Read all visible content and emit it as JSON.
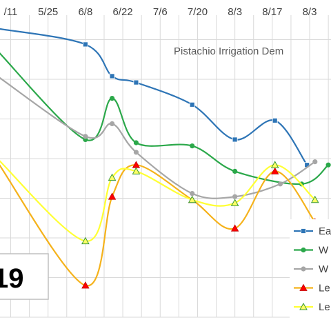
{
  "chart_data": {
    "type": "line",
    "title": "Pistachio Irrigation Dem",
    "x_tick_labels": [
      "/11",
      "5/25",
      "6/8",
      "6/22",
      "7/6",
      "7/20",
      "8/3",
      "8/17",
      "8/3"
    ],
    "x_tick_days": [
      131,
      145,
      159,
      173,
      187,
      201,
      215,
      229,
      243
    ],
    "x_range": [
      127,
      251
    ],
    "y_range": [
      0,
      100
    ],
    "grid": true,
    "legend_position": "right",
    "series": [
      {
        "name": "Ea",
        "color": "#2E75B6",
        "marker": "square",
        "x": [
          126,
          159,
          169,
          178,
          199,
          215,
          230,
          242
        ],
        "y": [
          91,
          86,
          76,
          74,
          67,
          56,
          62,
          48
        ]
      },
      {
        "name": "W",
        "color": "#2BA84A",
        "marker": "circle",
        "x": [
          126,
          159,
          169,
          178,
          199,
          215,
          240,
          250
        ],
        "y": [
          84,
          56,
          69,
          55,
          54,
          46,
          42,
          48
        ]
      },
      {
        "name": "W",
        "color": "#A6A6A6",
        "marker": "circle",
        "x": [
          126,
          159,
          169,
          178,
          199,
          215,
          232,
          245
        ],
        "y": [
          76,
          57,
          61,
          52,
          39,
          38,
          42,
          49
        ]
      },
      {
        "name": "Le",
        "color": "#F5B21B",
        "marker": "triangle-red",
        "x": [
          126,
          159,
          169,
          178,
          199,
          215,
          230,
          245
        ],
        "y": [
          49,
          10,
          38,
          48,
          37,
          28,
          46,
          30
        ]
      },
      {
        "name": "Le",
        "color": "#FFFF33",
        "marker": "triangle-green",
        "x": [
          126,
          159,
          169,
          178,
          199,
          215,
          230,
          245
        ],
        "y": [
          50,
          24,
          44,
          46,
          37,
          36,
          48,
          37
        ]
      }
    ]
  },
  "overlay_label": "19"
}
